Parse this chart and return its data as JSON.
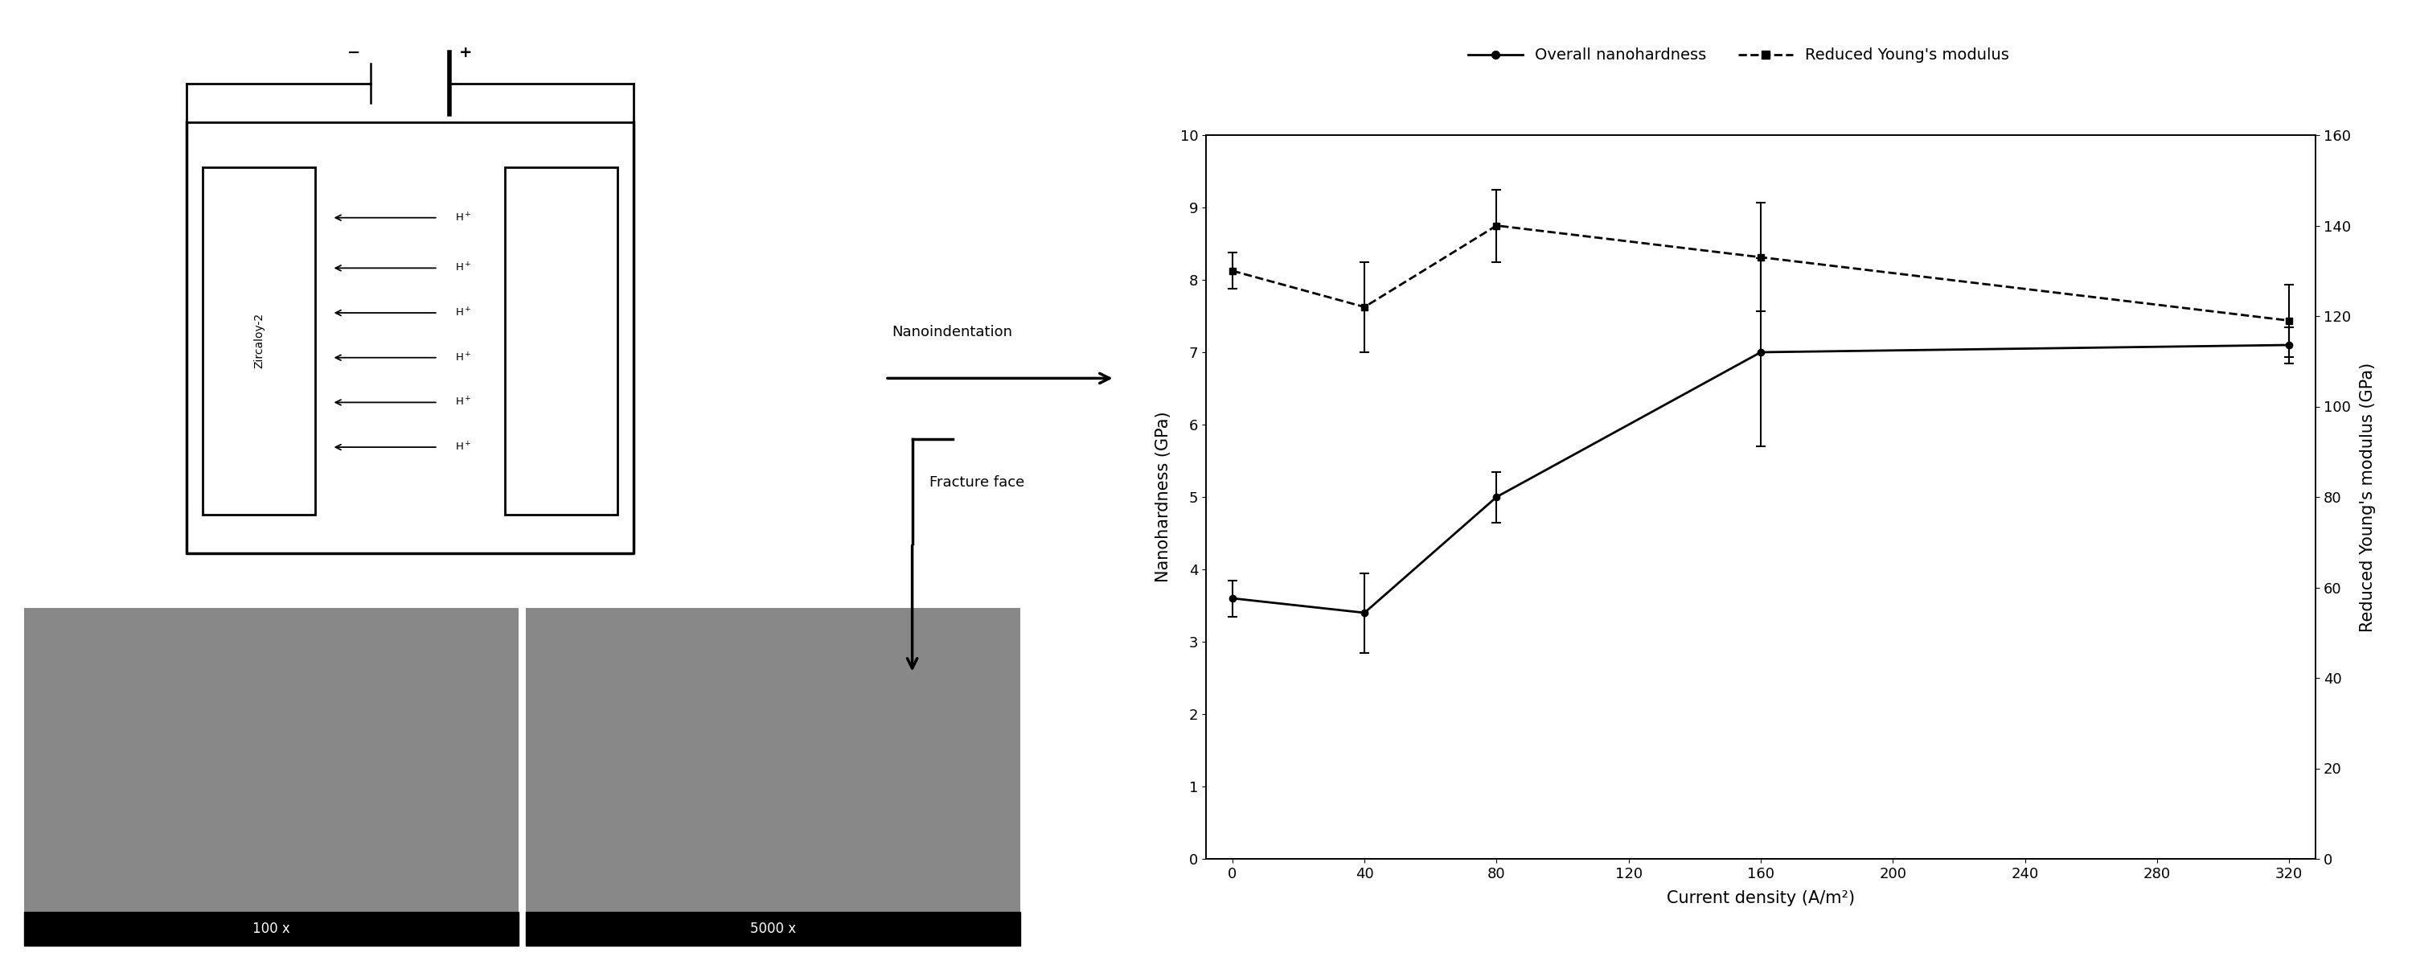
{
  "x": [
    0,
    40,
    80,
    160,
    320
  ],
  "nanohardness": [
    3.6,
    3.4,
    5.0,
    7.0,
    7.1
  ],
  "nanohardness_err": [
    0.25,
    0.55,
    0.35,
    1.3,
    0.25
  ],
  "young_modulus": [
    130,
    122,
    140,
    133,
    119
  ],
  "young_modulus_err": [
    4,
    10,
    8,
    12,
    8
  ],
  "xlabel": "Current density (A/m²)",
  "ylabel_left": "Nanohardness (GPa)",
  "ylabel_right": "Reduced Young's modulus (GPa)",
  "legend_nanohardness": "Overall nanohardness",
  "legend_young": "Reduced Young's modulus",
  "xlim": [
    -8,
    328
  ],
  "ylim_left": [
    0,
    10
  ],
  "ylim_right": [
    0,
    160
  ],
  "xticks": [
    0,
    40,
    80,
    120,
    160,
    200,
    240,
    280,
    320
  ],
  "yticks_left": [
    0,
    1,
    2,
    3,
    4,
    5,
    6,
    7,
    8,
    9,
    10
  ],
  "yticks_right": [
    0,
    20,
    40,
    60,
    80,
    100,
    120,
    140,
    160
  ],
  "zircaloy_label": "Zircaloy-2",
  "scale_100x": "100 x",
  "scale_5000x": "5000 x",
  "color_background": "#ffffff",
  "nano_label": "Nanoindentation",
  "fracture_label": "Fracture face",
  "minus_label": "−",
  "plus_label": "+"
}
